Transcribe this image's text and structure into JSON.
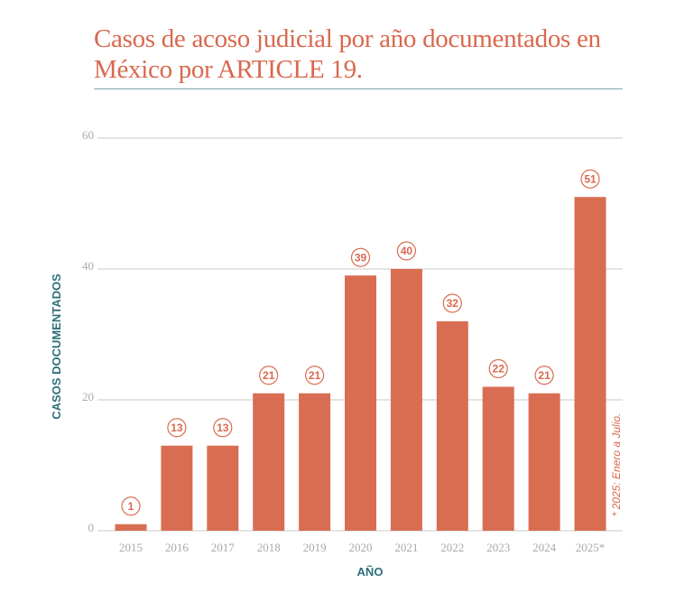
{
  "colors": {
    "bar": "#d96d52",
    "title": "#d9684e",
    "axis_label": "#2e6f7a",
    "grid": "#c9c9c9",
    "tick": "#a9a9a9",
    "label_circle_stroke": "#d96d52",
    "label_text": "#d9684e"
  },
  "chart_data": {
    "type": "bar",
    "title": "Casos de acoso judicial por año documentados en México por ARTICLE 19.",
    "xlabel": "AÑO",
    "ylabel": "CASOS DOCUMENTADOS",
    "categories": [
      "2015",
      "2016",
      "2017",
      "2018",
      "2019",
      "2020",
      "2021",
      "2022",
      "2023",
      "2024",
      "2025*"
    ],
    "values": [
      1,
      13,
      13,
      21,
      21,
      39,
      40,
      32,
      22,
      21,
      51
    ],
    "data_labels": [
      "1",
      "13",
      "13",
      "21",
      "21",
      "39",
      "40",
      "32",
      "22",
      "21",
      "51"
    ],
    "ylim": [
      0,
      60
    ],
    "yticks": [
      "0",
      "20",
      "40",
      "60"
    ],
    "grid": true,
    "footnote": "* 2025: Enero a Julio."
  }
}
